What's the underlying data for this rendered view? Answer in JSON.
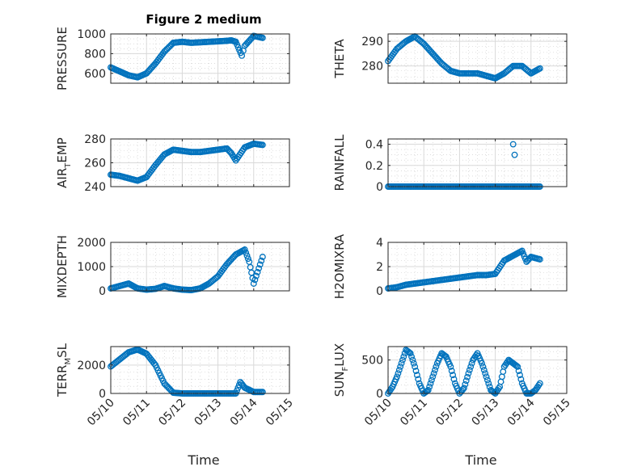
{
  "figure": {
    "title": "Figure 2 medium",
    "xlabel": "Time"
  },
  "chart_data": [
    {
      "type": "scatter",
      "title": "Figure 2 medium",
      "ylabel": "PRESSURE",
      "ylim": [
        500,
        1000
      ],
      "yticks": [
        "600",
        "800",
        "1000"
      ],
      "ytick_values": [
        600,
        800,
        1000
      ],
      "xlim": [
        "05/10",
        "05/15"
      ],
      "xticks": [],
      "xlabel": "",
      "grid": true,
      "color": "#0072BD",
      "x": [
        "05/10 00:00",
        "05/10 06:00",
        "05/10 12:00",
        "05/10 18:00",
        "05/11 00:00",
        "05/11 06:00",
        "05/11 12:00",
        "05/11 18:00",
        "05/12 00:00",
        "05/12 06:00",
        "05/12 12:00",
        "05/12 18:00",
        "05/13 00:00",
        "05/13 06:00",
        "05/13 09:00",
        "05/13 12:00",
        "05/13 16:00",
        "05/13 18:00",
        "05/14 00:00",
        "05/14 06:00"
      ],
      "y": [
        660,
        620,
        580,
        560,
        600,
        700,
        820,
        910,
        920,
        910,
        915,
        920,
        925,
        930,
        935,
        920,
        780,
        880,
        980,
        960
      ]
    },
    {
      "type": "scatter",
      "ylabel": "THETA",
      "ylim": [
        273,
        293
      ],
      "yticks": [
        "280",
        "290"
      ],
      "ytick_values": [
        280,
        290
      ],
      "xlim": [
        "05/10",
        "05/15"
      ],
      "xticks": [],
      "xlabel": "",
      "grid": true,
      "color": "#0072BD",
      "x": [
        "05/10 00:00",
        "05/10 06:00",
        "05/10 12:00",
        "05/10 18:00",
        "05/11 00:00",
        "05/11 06:00",
        "05/11 12:00",
        "05/11 18:00",
        "05/12 00:00",
        "05/12 06:00",
        "05/12 12:00",
        "05/12 18:00",
        "05/13 00:00",
        "05/13 06:00",
        "05/13 12:00",
        "05/13 18:00",
        "05/14 00:00",
        "05/14 06:00"
      ],
      "y": [
        282,
        287,
        290,
        292,
        289,
        285,
        281,
        278,
        277,
        277,
        277,
        276,
        275,
        277,
        280,
        280,
        277,
        279
      ]
    },
    {
      "type": "scatter",
      "ylabel": "AIR_TEMP",
      "ylabel_main": "AIR",
      "ylabel_sub": "T",
      "ylabel_rest": "EMP",
      "ylim": [
        240,
        280
      ],
      "yticks": [
        "240",
        "260",
        "280"
      ],
      "ytick_values": [
        240,
        260,
        280
      ],
      "xlim": [
        "05/10",
        "05/15"
      ],
      "xticks": [],
      "xlabel": "",
      "grid": true,
      "color": "#0072BD",
      "x": [
        "05/10 00:00",
        "05/10 06:00",
        "05/10 12:00",
        "05/10 18:00",
        "05/11 00:00",
        "05/11 06:00",
        "05/11 12:00",
        "05/11 18:00",
        "05/12 00:00",
        "05/12 06:00",
        "05/12 12:00",
        "05/12 18:00",
        "05/13 00:00",
        "05/13 06:00",
        "05/13 09:00",
        "05/13 12:00",
        "05/13 18:00",
        "05/14 00:00",
        "05/14 06:00"
      ],
      "y": [
        250,
        249,
        247,
        245,
        248,
        258,
        267,
        271,
        270,
        269,
        269,
        270,
        271,
        272,
        268,
        262,
        273,
        276,
        275
      ]
    },
    {
      "type": "scatter",
      "ylabel": "RAINFALL",
      "ylim": [
        0,
        0.45
      ],
      "yticks": [
        "0",
        "0.2",
        "0.4"
      ],
      "ytick_values": [
        0,
        0.2,
        0.4
      ],
      "xlim": [
        "05/10",
        "05/15"
      ],
      "xticks": [],
      "xlabel": "",
      "grid": true,
      "color": "#0072BD",
      "x": [
        "05/10 00:00",
        "05/10 06:00",
        "05/10 12:00",
        "05/10 18:00",
        "05/11 00:00",
        "05/11 06:00",
        "05/11 12:00",
        "05/11 18:00",
        "05/12 00:00",
        "05/12 06:00",
        "05/12 12:00",
        "05/12 18:00",
        "05/13 00:00",
        "05/13 06:00",
        "05/13 12:00",
        "05/13 18:00",
        "05/14 00:00",
        "05/14 06:00",
        "05/13 12:00",
        "05/13 13:00"
      ],
      "y": [
        0,
        0,
        0,
        0,
        0,
        0,
        0,
        0,
        0,
        0,
        0,
        0,
        0,
        0,
        0,
        0,
        0,
        0,
        0.4,
        0.3
      ]
    },
    {
      "type": "scatter",
      "ylabel": "MIXDEPTH",
      "ylim": [
        0,
        2000
      ],
      "yticks": [
        "0",
        "1000",
        "2000"
      ],
      "ytick_values": [
        0,
        1000,
        2000
      ],
      "xlim": [
        "05/10",
        "05/15"
      ],
      "xticks": [],
      "xlabel": "",
      "grid": true,
      "color": "#0072BD",
      "x": [
        "05/10 00:00",
        "05/10 06:00",
        "05/10 12:00",
        "05/10 18:00",
        "05/11 00:00",
        "05/11 06:00",
        "05/11 12:00",
        "05/11 18:00",
        "05/12 00:00",
        "05/12 06:00",
        "05/12 12:00",
        "05/12 18:00",
        "05/13 00:00",
        "05/13 06:00",
        "05/13 12:00",
        "05/13 18:00",
        "05/13 21:00",
        "05/14 00:00",
        "05/14 06:00"
      ],
      "y": [
        100,
        200,
        300,
        100,
        50,
        80,
        200,
        100,
        50,
        30,
        100,
        300,
        600,
        1100,
        1500,
        1700,
        1200,
        300,
        1400
      ]
    },
    {
      "type": "scatter",
      "ylabel": "H2OMIXRA",
      "ylim": [
        0,
        4
      ],
      "yticks": [
        "0",
        "2",
        "4"
      ],
      "ytick_values": [
        0,
        2,
        4
      ],
      "xlim": [
        "05/10",
        "05/15"
      ],
      "xticks": [],
      "xlabel": "",
      "grid": true,
      "color": "#0072BD",
      "x": [
        "05/10 00:00",
        "05/10 06:00",
        "05/10 12:00",
        "05/10 18:00",
        "05/11 00:00",
        "05/11 06:00",
        "05/11 12:00",
        "05/11 18:00",
        "05/12 00:00",
        "05/12 06:00",
        "05/12 12:00",
        "05/12 18:00",
        "05/13 00:00",
        "05/13 06:00",
        "05/13 12:00",
        "05/13 18:00",
        "05/13 21:00",
        "05/14 00:00",
        "05/14 06:00"
      ],
      "y": [
        0.2,
        0.3,
        0.5,
        0.6,
        0.7,
        0.8,
        0.9,
        1.0,
        1.1,
        1.2,
        1.3,
        1.3,
        1.4,
        2.5,
        2.9,
        3.3,
        2.4,
        2.8,
        2.6
      ]
    },
    {
      "type": "scatter",
      "ylabel": "TERR_MSL",
      "ylabel_main": "TERR",
      "ylabel_sub": "M",
      "ylabel_rest": "SL",
      "ylim": [
        0,
        3300
      ],
      "yticks": [
        "0",
        "2000"
      ],
      "ytick_values": [
        0,
        2000
      ],
      "xlim": [
        "05/10",
        "05/15"
      ],
      "xticks": [
        "05/10",
        "05/11",
        "05/12",
        "05/13",
        "05/14",
        "05/15"
      ],
      "xlabel": "Time",
      "grid": true,
      "color": "#0072BD",
      "x": [
        "05/10 00:00",
        "05/10 06:00",
        "05/10 12:00",
        "05/10 18:00",
        "05/11 00:00",
        "05/11 06:00",
        "05/11 12:00",
        "05/11 18:00",
        "05/12 00:00",
        "05/12 06:00",
        "05/12 12:00",
        "05/12 18:00",
        "05/13 00:00",
        "05/13 06:00",
        "05/13 12:00",
        "05/13 15:00",
        "05/13 18:00",
        "05/14 00:00",
        "05/14 06:00"
      ],
      "y": [
        1900,
        2400,
        2900,
        3100,
        2800,
        2000,
        700,
        50,
        0,
        0,
        0,
        0,
        0,
        0,
        0,
        800,
        400,
        100,
        100
      ]
    },
    {
      "type": "scatter",
      "ylabel": "SUN_FLUX",
      "ylabel_main": "SUN",
      "ylabel_sub": "F",
      "ylabel_rest": "LUX",
      "ylim": [
        0,
        700
      ],
      "yticks": [
        "0",
        "500"
      ],
      "ytick_values": [
        0,
        500
      ],
      "xlim": [
        "05/10",
        "05/15"
      ],
      "xticks": [
        "05/10",
        "05/11",
        "05/12",
        "05/13",
        "05/14",
        "05/15"
      ],
      "xlabel": "Time",
      "grid": true,
      "color": "#0072BD",
      "x": [
        "05/10 00:00",
        "05/10 03:00",
        "05/10 06:00",
        "05/10 09:00",
        "05/10 12:00",
        "05/10 15:00",
        "05/10 18:00",
        "05/10 21:00",
        "05/11 00:00",
        "05/11 03:00",
        "05/11 06:00",
        "05/11 09:00",
        "05/11 12:00",
        "05/11 15:00",
        "05/11 18:00",
        "05/11 21:00",
        "05/12 00:00",
        "05/12 03:00",
        "05/12 06:00",
        "05/12 09:00",
        "05/12 12:00",
        "05/12 15:00",
        "05/12 18:00",
        "05/12 21:00",
        "05/13 00:00",
        "05/13 03:00",
        "05/13 06:00",
        "05/13 09:00",
        "05/13 12:00",
        "05/13 15:00",
        "05/13 18:00",
        "05/13 21:00",
        "05/14 00:00",
        "05/14 03:00",
        "05/14 06:00"
      ],
      "y": [
        0,
        100,
        250,
        450,
        650,
        600,
        400,
        150,
        0,
        50,
        250,
        450,
        600,
        550,
        400,
        150,
        0,
        80,
        300,
        500,
        600,
        450,
        250,
        50,
        0,
        100,
        400,
        500,
        450,
        400,
        150,
        0,
        0,
        50,
        150
      ]
    }
  ]
}
